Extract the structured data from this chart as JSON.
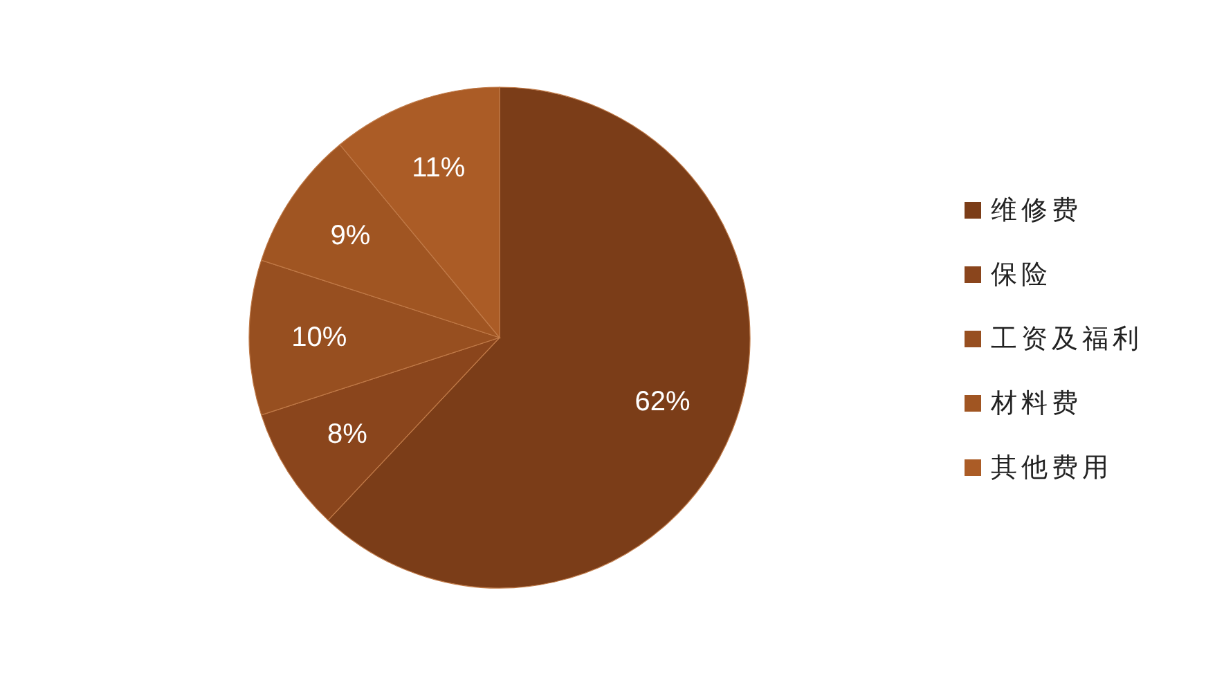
{
  "chart_data": {
    "type": "pie",
    "categories": [
      "维修费",
      "保险",
      "工资及福利",
      "材料费",
      "其他费用"
    ],
    "values": [
      62,
      8,
      10,
      9,
      11
    ],
    "colors": [
      "#7b3d18",
      "#8a451c",
      "#974f20",
      "#a05522",
      "#ab5c26"
    ],
    "value_labels": [
      "62%",
      "8%",
      "10%",
      "9%",
      "11%"
    ],
    "legend": "right"
  }
}
